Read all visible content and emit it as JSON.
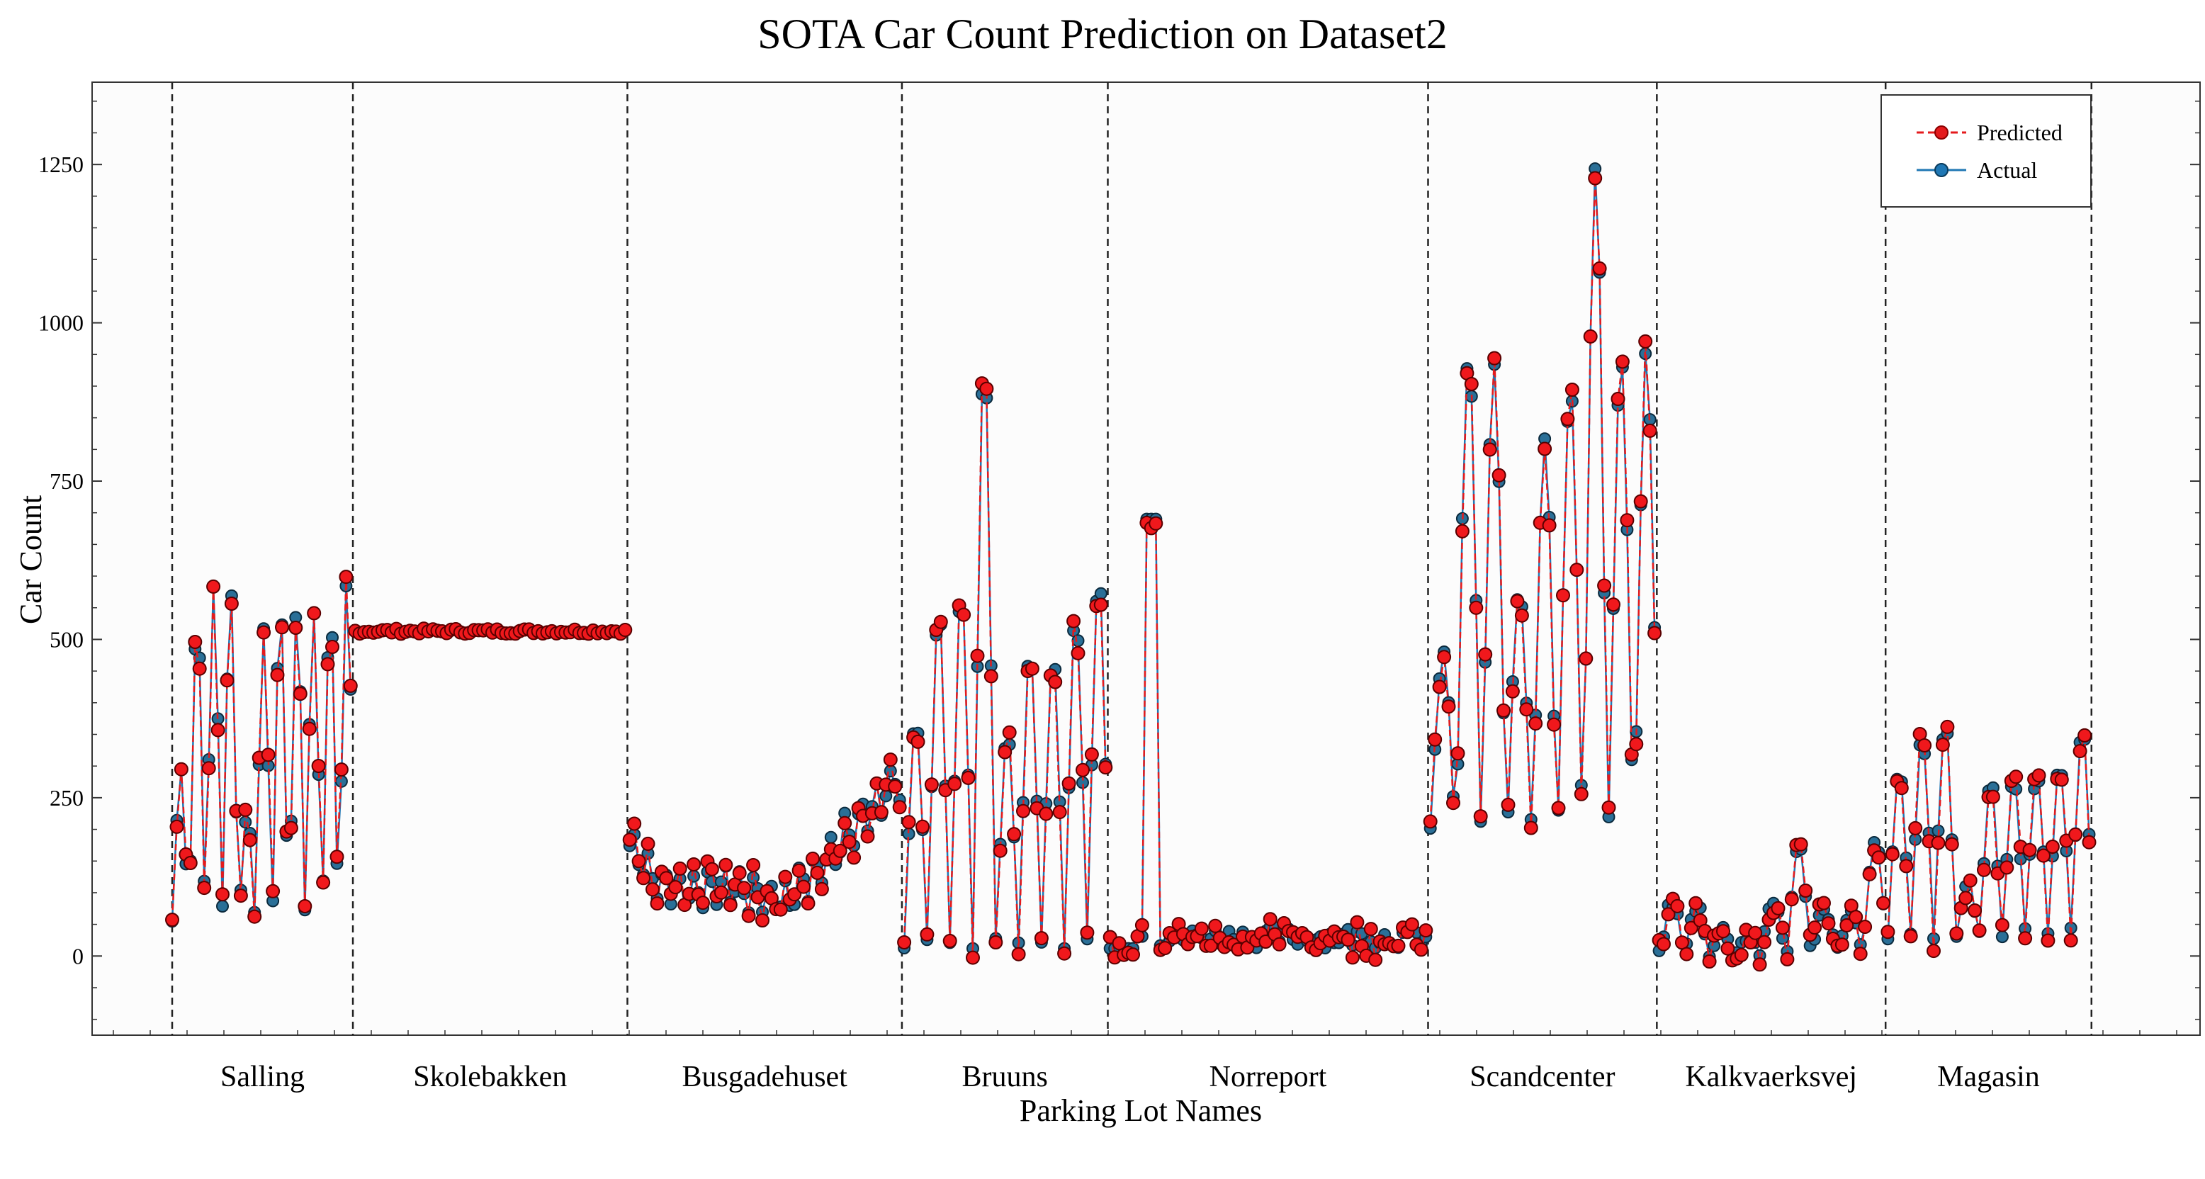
{
  "chart_data": {
    "type": "line",
    "title": "SOTA Car Count Prediction on Dataset2",
    "xlabel": "Parking Lot Names",
    "ylabel": "Car Count",
    "ylim": [
      -125,
      1380
    ],
    "yticks": [
      0,
      250,
      500,
      750,
      1000,
      1250
    ],
    "categories": [
      "Salling",
      "Skolebakken",
      "Busgadehuset",
      "Bruuns",
      "Norreport",
      "Scandcenter",
      "Kalkvaerksvej",
      "Magasin"
    ],
    "legend_position": "top-right",
    "series": [
      {
        "name": "Predicted",
        "color": "#e41a1c",
        "style": "dashed",
        "marker": "circle"
      },
      {
        "name": "Actual",
        "color": "#1f77b4",
        "style": "solid",
        "marker": "circle"
      }
    ],
    "segments": [
      {
        "name": "Salling",
        "points": 40,
        "lo": 55,
        "hi": [
          300,
          540,
          585,
          580,
          230,
          520,
          555,
          555,
          545,
          550,
          585
        ]
      },
      {
        "name": "Skolebakken",
        "points": 60,
        "flat": 513
      },
      {
        "name": "Busgadehuset",
        "points": 60,
        "trend": [
          175,
          120,
          95,
          110,
          100,
          90,
          120,
          180,
          230,
          280
        ]
      },
      {
        "name": "Bruuns",
        "points": 45,
        "lo": 20,
        "hi": [
          380,
          550,
          575,
          945,
          360,
          490,
          485,
          540,
          610
        ]
      },
      {
        "name": "Norreport",
        "points": 70,
        "base": 30,
        "spike": 690
      },
      {
        "name": "Scandcenter",
        "points": 50,
        "lo": 200,
        "hi": [
          480,
          950,
          930,
          580,
          820,
          900,
          1255,
          940,
          950
        ]
      },
      {
        "name": "Kalkvaerksvej",
        "points": 50,
        "lo": 5,
        "hi": [
          85,
          80,
          40,
          30,
          85,
          170,
          80,
          70,
          180
        ]
      },
      {
        "name": "Magasin",
        "points": 45,
        "lo": 35,
        "hi": [
          290,
          350,
          365,
          120,
          280,
          285,
          290,
          310,
          365
        ]
      }
    ]
  }
}
